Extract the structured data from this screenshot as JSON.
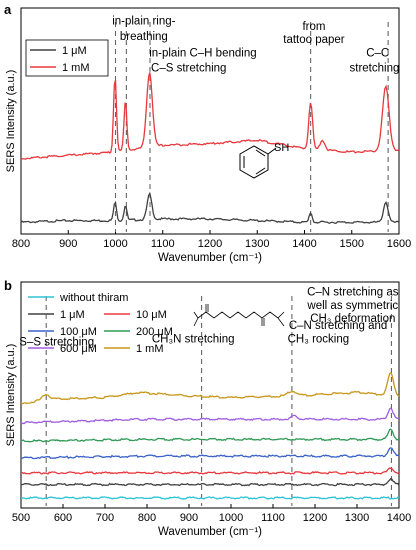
{
  "chart_data": [
    {
      "type": "line",
      "panel_letter": "a",
      "xlabel": "Wavenumber (cm⁻¹)",
      "ylabel": "SERS Intensity (a.u.)",
      "xlim": [
        800,
        1600
      ],
      "x_ticks": [
        800,
        900,
        1000,
        1100,
        1200,
        1300,
        1400,
        1500,
        1600
      ],
      "y_ticks_shown": false,
      "legend_position": "top-left",
      "series": [
        {
          "name": "1 μM",
          "color": "#404040",
          "offset": 0,
          "baseline": [
            [
              800,
              0.02
            ],
            [
              900,
              0.03
            ],
            [
              1000,
              0.03
            ],
            [
              1100,
              0.04
            ],
            [
              1200,
              0.04
            ],
            [
              1300,
              0.03
            ],
            [
              1400,
              0.02
            ],
            [
              1500,
              0.02
            ],
            [
              1600,
              0.02
            ]
          ],
          "peaks": [
            [
              999,
              0.11,
              3
            ],
            [
              1021,
              0.09,
              3
            ],
            [
              1072,
              0.15,
              5
            ],
            [
              1413,
              0.06,
              3
            ],
            [
              1572,
              0.12,
              5
            ]
          ]
        },
        {
          "name": "1 mM",
          "color": "#e8383d",
          "offset": 0.36,
          "baseline": [
            [
              800,
              0.04
            ],
            [
              900,
              0.06
            ],
            [
              1000,
              0.08
            ],
            [
              1100,
              0.12
            ],
            [
              1200,
              0.13
            ],
            [
              1300,
              0.15
            ],
            [
              1400,
              0.1
            ],
            [
              1500,
              0.08
            ],
            [
              1600,
              0.09
            ]
          ],
          "peaks": [
            [
              999,
              0.46,
              3
            ],
            [
              1021,
              0.3,
              3
            ],
            [
              1072,
              0.45,
              6
            ],
            [
              1413,
              0.28,
              4
            ],
            [
              1438,
              0.06,
              5
            ],
            [
              1572,
              0.38,
              7
            ]
          ]
        }
      ],
      "dashed_lines": [
        1000,
        1023,
        1073,
        1413,
        1577
      ],
      "annotations": [
        {
          "text": "in-plain ring-",
          "x": 1060,
          "y": 1.2
        },
        {
          "text": "breathing",
          "x": 1060,
          "y": 1.11
        },
        {
          "text": "in-plain C–H bending",
          "x": 1185,
          "y": 1.01
        },
        {
          "text": "C–S stretching",
          "x": 1155,
          "y": 0.92
        },
        {
          "text": "from",
          "x": 1420,
          "y": 1.17
        },
        {
          "text": "tattoo paper",
          "x": 1420,
          "y": 1.09
        },
        {
          "text": "C–C",
          "x": 1555,
          "y": 1.01
        },
        {
          "text": "stretching",
          "x": 1548,
          "y": 0.92
        }
      ],
      "molecule": {
        "label": "SH",
        "name": "thiophenol"
      }
    },
    {
      "type": "line",
      "panel_letter": "b",
      "xlabel": "Wavenumber (cm⁻¹)",
      "ylabel": "SERS Intensity (a.u.)",
      "xlim": [
        500,
        1400
      ],
      "x_ticks": [
        500,
        600,
        700,
        800,
        900,
        1000,
        1100,
        1200,
        1300,
        1400
      ],
      "y_ticks_shown": false,
      "legend_position": "top-left",
      "series": [
        {
          "name": "without thiram",
          "color": "#2bc4d6",
          "offset": 0.0,
          "baseline": [
            [
              500,
              0.01
            ],
            [
              1400,
              0.01
            ]
          ],
          "peaks": []
        },
        {
          "name": "1 μM",
          "color": "#404040",
          "offset": 0.08,
          "baseline": [
            [
              500,
              0.01
            ],
            [
              1400,
              0.01
            ]
          ],
          "peaks": [
            [
              1380,
              0.03,
              6
            ]
          ]
        },
        {
          "name": "10 μM",
          "color": "#e8383d",
          "offset": 0.15,
          "baseline": [
            [
              500,
              0.01
            ],
            [
              1400,
              0.01
            ]
          ],
          "peaks": [
            [
              1380,
              0.03,
              6
            ]
          ]
        },
        {
          "name": "100 μM",
          "color": "#3a62c8",
          "offset": 0.24,
          "baseline": [
            [
              500,
              0.01
            ],
            [
              800,
              0.02
            ],
            [
              1100,
              0.02
            ],
            [
              1300,
              0.02
            ],
            [
              1400,
              0.02
            ]
          ],
          "peaks": [
            [
              1380,
              0.05,
              6
            ]
          ]
        },
        {
          "name": "200 μM",
          "color": "#2f9a55",
          "offset": 0.34,
          "baseline": [
            [
              500,
              0.01
            ],
            [
              800,
              0.02
            ],
            [
              1100,
              0.02
            ],
            [
              1300,
              0.02
            ],
            [
              1400,
              0.02
            ]
          ],
          "peaks": [
            [
              1380,
              0.06,
              6
            ]
          ]
        },
        {
          "name": "600 μM",
          "color": "#a15fe0",
          "offset": 0.45,
          "baseline": [
            [
              500,
              0.01
            ],
            [
              800,
              0.03
            ],
            [
              1100,
              0.03
            ],
            [
              1300,
              0.03
            ],
            [
              1400,
              0.03
            ]
          ],
          "peaks": [
            [
              1380,
              0.07,
              6
            ],
            [
              1150,
              0.02,
              8
            ]
          ]
        },
        {
          "name": "1 mM",
          "color": "#c8961a",
          "offset": 0.56,
          "baseline": [
            [
              500,
              0.01
            ],
            [
              560,
              0.04
            ],
            [
              700,
              0.05
            ],
            [
              780,
              0.08
            ],
            [
              900,
              0.06
            ],
            [
              1000,
              0.05
            ],
            [
              1150,
              0.06
            ],
            [
              1300,
              0.08
            ],
            [
              1400,
              0.06
            ]
          ],
          "peaks": [
            [
              1380,
              0.13,
              7
            ],
            [
              560,
              0.03,
              8
            ],
            [
              1145,
              0.03,
              10
            ]
          ]
        }
      ],
      "dashed_lines": [
        560,
        930,
        1145,
        1382
      ],
      "annotations": [
        {
          "text": "S–S stretching",
          "x": 585,
          "y": 0.92
        },
        {
          "text": "CH₃N stretching",
          "x": 910,
          "y": 0.94
        },
        {
          "text": "C–N stretching and",
          "x": 1255,
          "y": 1.02
        },
        {
          "text": "CH₃ rocking",
          "x": 1208,
          "y": 0.94
        },
        {
          "text": "C–N stretching as",
          "x": 1290,
          "y": 1.22
        },
        {
          "text": "well as symmetric",
          "x": 1290,
          "y": 1.14
        },
        {
          "text": "CH₃ deformation",
          "x": 1290,
          "y": 1.06
        }
      ],
      "molecule": {
        "name": "thiram"
      }
    }
  ]
}
